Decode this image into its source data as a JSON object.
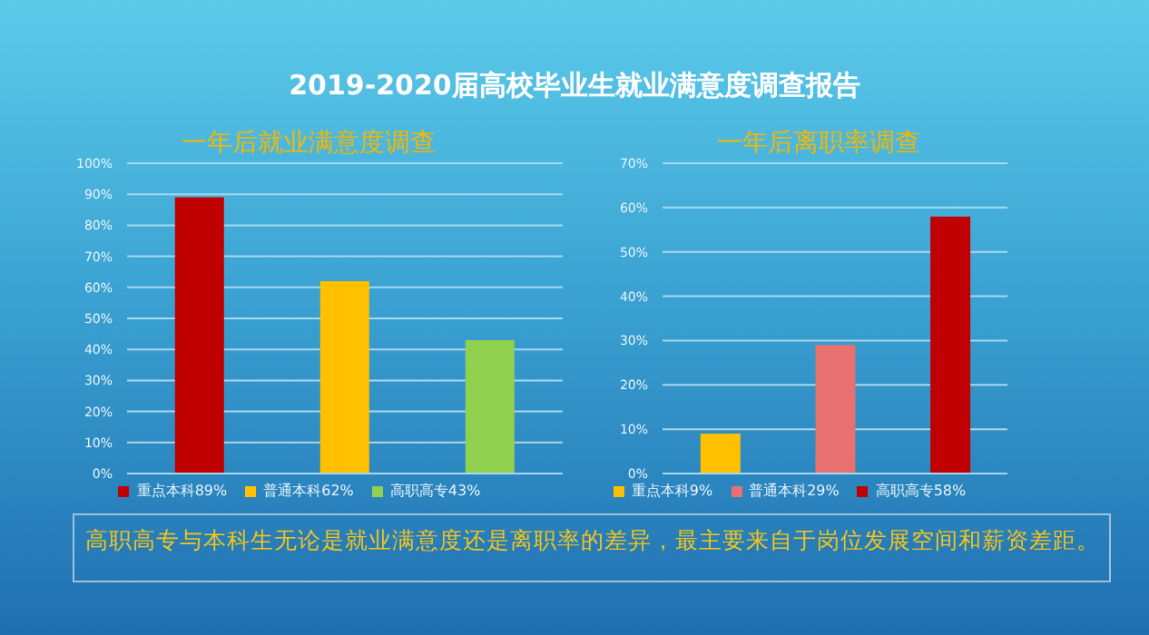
{
  "chart_data": [
    {
      "type": "other",
      "title": "2019-2020届高校毕业生就业满意度调查报告"
    },
    {
      "type": "bar",
      "title": "一年后就业满意度调查",
      "categories": [
        null,
        null,
        null
      ],
      "series": [
        {
          "name": "重点本科89%",
          "color": "#c00000",
          "values": [
            89,
            null,
            null
          ]
        },
        {
          "name": "普通本科62%",
          "color": "#ffc000",
          "values": [
            null,
            62,
            null
          ]
        },
        {
          "name": "高职高专43%",
          "color": "#92d050",
          "values": [
            null,
            null,
            43
          ]
        }
      ],
      "ylim": [
        0,
        100
      ],
      "yticks": [
        {
          "value": 0,
          "label": "0%"
        },
        {
          "value": 10,
          "label": "10%"
        },
        {
          "value": 20,
          "label": "20%"
        },
        {
          "value": 30,
          "label": "30%"
        },
        {
          "value": 40,
          "label": "40%"
        },
        {
          "value": 50,
          "label": "50%"
        },
        {
          "value": 60,
          "label": "60%"
        },
        {
          "value": 70,
          "label": "70%"
        },
        {
          "value": 80,
          "label": "80%"
        },
        {
          "value": 90,
          "label": "90%"
        },
        {
          "value": 100,
          "label": "100%"
        }
      ],
      "grid": "y",
      "legend": "bottom",
      "tick_labels": "y"
    },
    {
      "type": "bar",
      "title": "一年后离职率调查",
      "categories": [
        null,
        null,
        null
      ],
      "series": [
        {
          "name": "重点本科9%",
          "color": "#ffc000",
          "values": [
            9,
            null,
            null
          ]
        },
        {
          "name": "普通本科29%",
          "color": "#e87070",
          "values": [
            null,
            29,
            null
          ]
        },
        {
          "name": "高职高专58%",
          "color": "#c00000",
          "values": [
            null,
            null,
            58
          ]
        }
      ],
      "ylim": [
        0,
        70
      ],
      "yticks": [
        {
          "value": 0,
          "label": "0%"
        },
        {
          "value": 10,
          "label": "10%"
        },
        {
          "value": 20,
          "label": "20%"
        },
        {
          "value": 30,
          "label": "30%"
        },
        {
          "value": 40,
          "label": "40%"
        },
        {
          "value": 50,
          "label": "50%"
        },
        {
          "value": 60,
          "label": "60%"
        },
        {
          "value": 70,
          "label": "70%"
        }
      ],
      "grid": "y",
      "legend": "bottom",
      "tick_labels": "y"
    },
    {
      "type": "other",
      "annotations": [
        "高职高专与本科生无论是就业满意度还是离职率的差异，最主要来自于岗位发展空间和薪资差距。"
      ]
    }
  ]
}
